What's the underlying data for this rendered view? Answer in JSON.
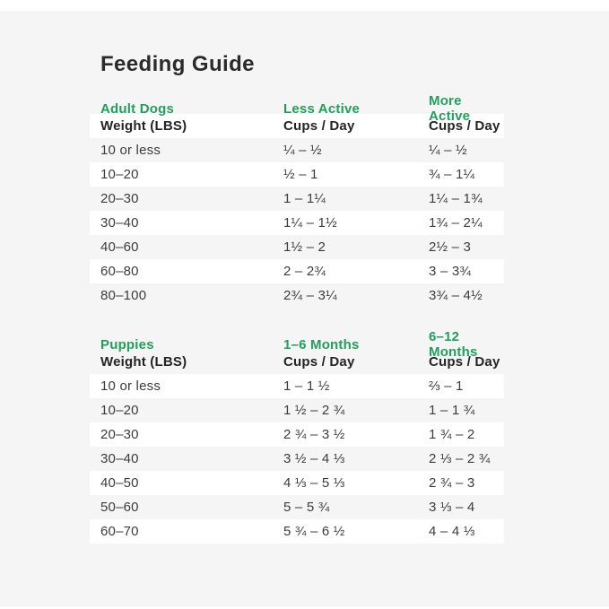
{
  "page": {
    "title": "Feeding Guide"
  },
  "colors": {
    "accent_green": "#21a05c",
    "title_text": "#2b2b2b",
    "cell_text": "#3c3c3c",
    "panel_background": "#f4f5f4",
    "row_highlight": "#ffffff"
  },
  "tables": [
    {
      "section_label": "Adult Dogs",
      "col2_label": "Less Active",
      "col3_label": "More Active",
      "header": [
        "Weight (LBS)",
        "Cups / Day",
        "Cups / Day"
      ],
      "header_row_white": true,
      "zebra_offset": 1,
      "rows": [
        [
          "10 or less",
          "¼ – ½",
          "¼ – ½"
        ],
        [
          "10–20",
          "½ – 1",
          "¾ – 1¼"
        ],
        [
          "20–30",
          "1 – 1¼",
          "1¼ – 1¾"
        ],
        [
          "30–40",
          "1¼ – 1½",
          "1¾ – 2¼"
        ],
        [
          "40–60",
          "1½ – 2",
          "2½ – 3"
        ],
        [
          "60–80",
          "2 – 2¾",
          "3 – 3¾"
        ],
        [
          "80–100",
          "2¾ – 3¼",
          "3¾ – 4½"
        ]
      ]
    },
    {
      "section_label": "Puppies",
      "col2_label": "1–6 Months",
      "col3_label": "6–12 Months",
      "header": [
        "Weight (LBS)",
        "Cups / Day",
        "Cups / Day"
      ],
      "header_row_white": false,
      "zebra_offset": 0,
      "rows": [
        [
          "10 or less",
          "1 – 1 ½",
          "⅔ – 1"
        ],
        [
          "10–20",
          "1 ½ – 2 ¾",
          "1 – 1 ¾"
        ],
        [
          "20–30",
          "2 ¾ – 3 ½",
          "1 ¾ – 2"
        ],
        [
          "30–40",
          "3 ½ – 4 ⅓",
          "2 ⅓ – 2 ¾"
        ],
        [
          "40–50",
          "4 ⅓ – 5 ⅓",
          "2 ¾ – 3"
        ],
        [
          "50–60",
          "5 – 5 ¾",
          "3 ⅓ – 4"
        ],
        [
          "60–70",
          "5 ¾ – 6 ½",
          "4 – 4 ⅓"
        ]
      ]
    }
  ]
}
